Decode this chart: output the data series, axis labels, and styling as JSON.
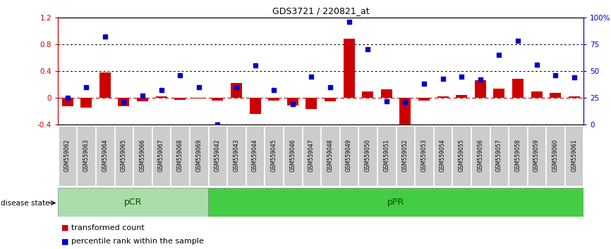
{
  "title": "GDS3721 / 220821_at",
  "samples": [
    "GSM559062",
    "GSM559063",
    "GSM559064",
    "GSM559065",
    "GSM559066",
    "GSM559067",
    "GSM559068",
    "GSM559069",
    "GSM559042",
    "GSM559043",
    "GSM559044",
    "GSM559045",
    "GSM559046",
    "GSM559047",
    "GSM559048",
    "GSM559049",
    "GSM559050",
    "GSM559051",
    "GSM559052",
    "GSM559053",
    "GSM559054",
    "GSM559055",
    "GSM559056",
    "GSM559057",
    "GSM559058",
    "GSM559059",
    "GSM559060",
    "GSM559061"
  ],
  "transformed_count": [
    -0.13,
    -0.15,
    0.38,
    -0.13,
    -0.05,
    0.02,
    -0.03,
    -0.01,
    -0.04,
    0.22,
    -0.24,
    -0.04,
    -0.12,
    -0.17,
    -0.05,
    0.88,
    0.09,
    0.13,
    -0.5,
    -0.04,
    0.02,
    0.04,
    0.26,
    0.14,
    0.28,
    0.09,
    0.07,
    0.02
  ],
  "percentile_rank": [
    25,
    35,
    82,
    21,
    27,
    32,
    46,
    35,
    0,
    35,
    55,
    32,
    19,
    45,
    35,
    96,
    70,
    22,
    21,
    38,
    43,
    45,
    42,
    65,
    78,
    56,
    46,
    44
  ],
  "pCR_count": 8,
  "bar_color": "#cc0000",
  "dot_color": "#0000cc",
  "pCR_color": "#aaddaa",
  "pPR_color": "#44cc44",
  "pCR_label": "pCR",
  "pPR_label": "pPR",
  "disease_state_label": "disease state",
  "legend_transformed": "transformed count",
  "legend_percentile": "percentile rank within the sample"
}
